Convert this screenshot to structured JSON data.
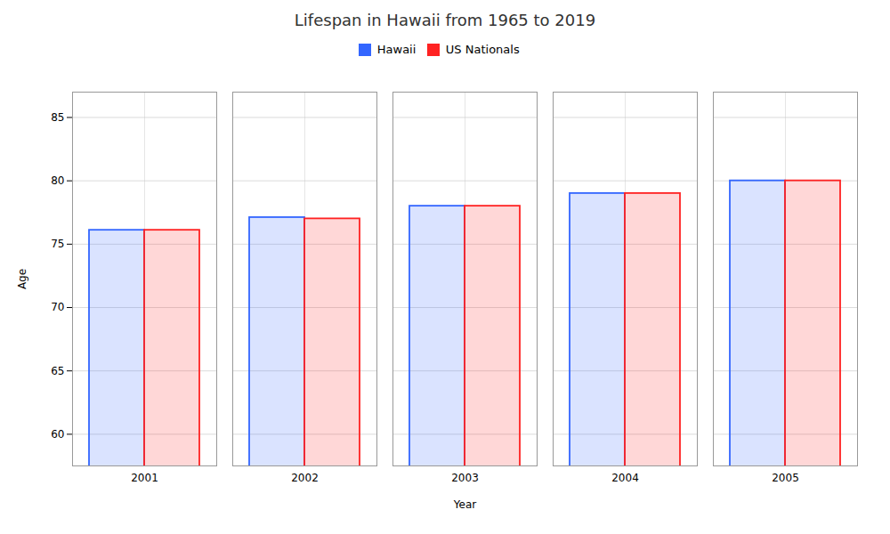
{
  "chart_data": {
    "type": "bar",
    "title": "Lifespan in Hawaii from 1965 to 2019",
    "xlabel": "Year",
    "ylabel": "Age",
    "categories": [
      "2001",
      "2002",
      "2003",
      "2004",
      "2005"
    ],
    "series": [
      {
        "name": "Hawaii",
        "color": "#3366ff",
        "values": [
          76.1,
          77.1,
          78.0,
          79.0,
          80.0
        ]
      },
      {
        "name": "US Nationals",
        "color": "#ff2222",
        "values": [
          76.1,
          77.0,
          78.0,
          79.0,
          80.0
        ]
      }
    ],
    "ylim": [
      57.5,
      87
    ],
    "yticks": [
      60,
      65,
      70,
      75,
      80,
      85
    ],
    "grid": true,
    "legend": "top"
  }
}
